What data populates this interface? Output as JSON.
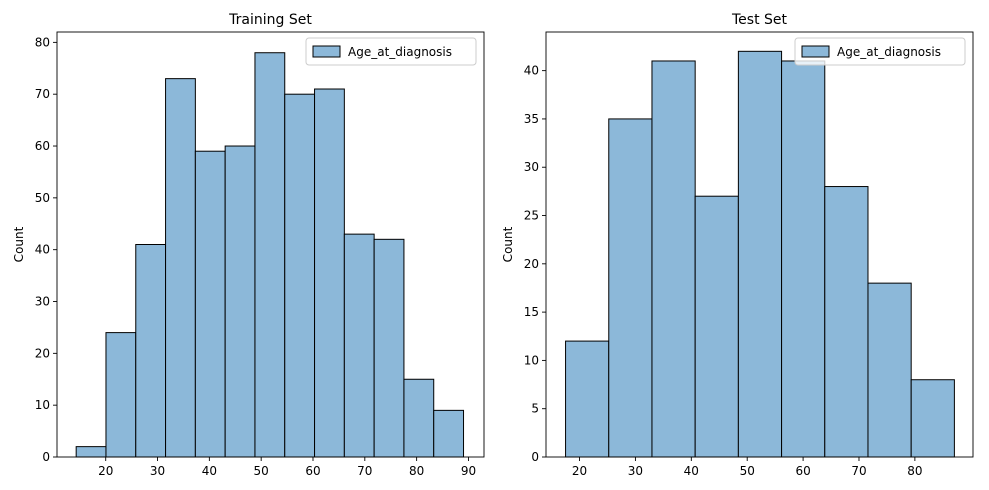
{
  "colors": {
    "bar_fill": "#8cb8d9",
    "bar_edge": "#000000",
    "axis": "#000000",
    "legend_border": "#cccccc"
  },
  "chart_data": [
    {
      "type": "bar",
      "title": "Training Set",
      "xlabel": "",
      "ylabel": "Count",
      "legend": {
        "entries": [
          "Age_at_diagnosis"
        ],
        "placement": "top-right"
      },
      "grid": false,
      "xlim": [
        10.6,
        93.0
      ],
      "ylim": [
        0,
        82
      ],
      "xticks": [
        20,
        30,
        40,
        50,
        60,
        70,
        80,
        90
      ],
      "yticks": [
        0,
        10,
        20,
        30,
        40,
        50,
        60,
        70,
        80
      ],
      "bin_edges": [
        14.3,
        20.05,
        25.8,
        31.55,
        37.3,
        43.05,
        48.8,
        54.55,
        60.3,
        66.05,
        71.8,
        77.55,
        83.3,
        89.05
      ],
      "series": [
        {
          "name": "Age_at_diagnosis",
          "values": [
            2,
            24,
            41,
            73,
            59,
            60,
            78,
            70,
            71,
            43,
            42,
            15,
            9
          ]
        }
      ]
    },
    {
      "type": "bar",
      "title": "Test Set",
      "xlabel": "",
      "ylabel": "Count",
      "legend": {
        "entries": [
          "Age_at_diagnosis"
        ],
        "placement": "top-right"
      },
      "grid": false,
      "xlim": [
        14.0,
        90.4
      ],
      "ylim": [
        0,
        44
      ],
      "xticks": [
        20,
        30,
        40,
        50,
        60,
        70,
        80
      ],
      "yticks": [
        0,
        5,
        10,
        15,
        20,
        25,
        30,
        35,
        40
      ],
      "bin_edges": [
        17.5,
        25.23,
        32.96,
        40.69,
        48.42,
        56.15,
        63.88,
        71.61,
        79.34,
        87.07
      ],
      "series": [
        {
          "name": "Age_at_diagnosis",
          "values": [
            12,
            35,
            41,
            27,
            42,
            41,
            28,
            18,
            8
          ]
        }
      ]
    }
  ]
}
